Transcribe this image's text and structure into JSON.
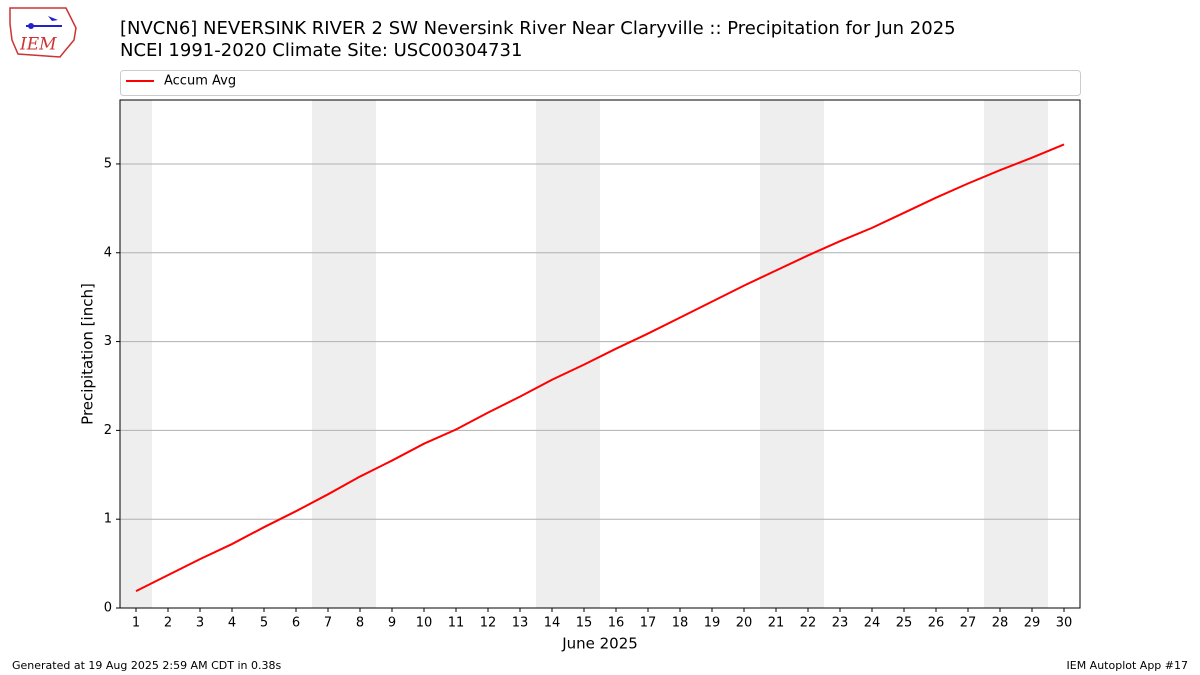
{
  "logo_text": "IEM",
  "chart_data": {
    "type": "line",
    "title": "[NVCN6] NEVERSINK RIVER 2 SW Neversink River Near Claryville :: Precipitation for Jun 2025",
    "subtitle": "NCEI 1991-2020 Climate Site: USC00304731",
    "x_label": "June 2025",
    "y_label": "Precipitation [inch]",
    "x": [
      1,
      2,
      3,
      4,
      5,
      6,
      7,
      8,
      9,
      10,
      11,
      12,
      13,
      14,
      15,
      16,
      17,
      18,
      19,
      20,
      21,
      22,
      23,
      24,
      25,
      26,
      27,
      28,
      29,
      30
    ],
    "series": [
      {
        "name": "Accum Avg",
        "color": "#ff0000",
        "values": [
          0.19,
          0.37,
          0.55,
          0.72,
          0.91,
          1.09,
          1.28,
          1.48,
          1.66,
          1.85,
          2.01,
          2.2,
          2.38,
          2.57,
          2.74,
          2.92,
          3.09,
          3.27,
          3.45,
          3.63,
          3.8,
          3.97,
          4.13,
          4.28,
          4.45,
          4.62,
          4.78,
          4.93,
          5.07,
          5.22
        ]
      }
    ],
    "xlim": [
      0.5,
      30.5
    ],
    "xticks": [
      1,
      2,
      3,
      4,
      5,
      6,
      7,
      8,
      9,
      10,
      11,
      12,
      13,
      14,
      15,
      16,
      17,
      18,
      19,
      20,
      21,
      22,
      23,
      24,
      25,
      26,
      27,
      28,
      29,
      30
    ],
    "ylim": [
      0,
      5.72
    ],
    "yticks": [
      0,
      1,
      2,
      3,
      4,
      5
    ],
    "grid": true,
    "weekend_days": [
      1,
      7,
      8,
      14,
      15,
      21,
      22,
      28,
      29
    ],
    "weekend_color": "#eeeeee",
    "legend": "top"
  },
  "footer": {
    "left": "Generated at 19 Aug 2025 2:59 AM CDT in 0.38s",
    "right": "IEM Autoplot App #17"
  }
}
